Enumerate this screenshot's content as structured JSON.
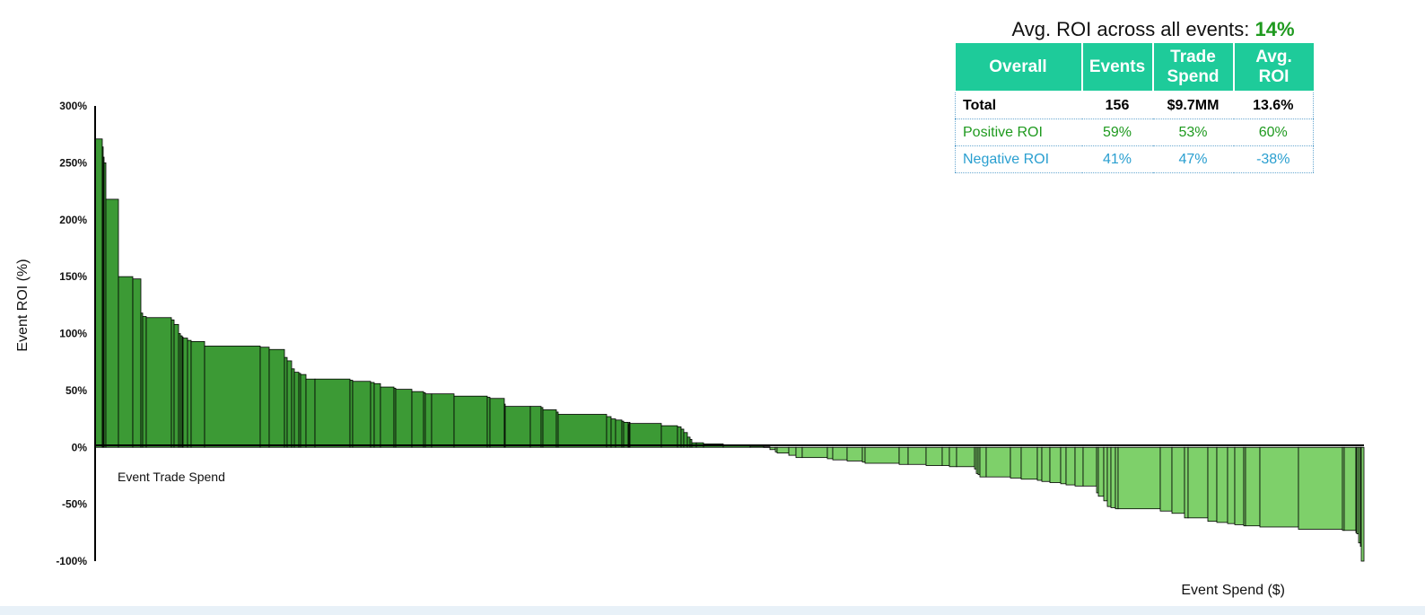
{
  "summary": {
    "label": "Avg. ROI across all events:",
    "value": "14%",
    "columns": [
      "Overall",
      "Events",
      "Trade Spend",
      "Avg. ROI"
    ],
    "rows": [
      {
        "label": "Total",
        "events": "156",
        "spend": "$9.7MM",
        "roi": "13.6%"
      },
      {
        "label": "Positive ROI",
        "events": "59%",
        "spend": "53%",
        "roi": "60%"
      },
      {
        "label": "Negative ROI",
        "events": "41%",
        "spend": "47%",
        "roi": "-38%"
      }
    ]
  },
  "colors": {
    "positive_bar": "#3c9a35",
    "negative_bar": "#7ed06a",
    "header_bg": "#1ecb9a"
  },
  "chart_data": {
    "type": "bar",
    "ylabel": "Event ROI (%)",
    "xlabel": "Event Spend ($)",
    "annotation": "Event Trade Spend",
    "yticks": [
      "300%",
      "250%",
      "200%",
      "150%",
      "100%",
      "50%",
      "0%",
      "-50%",
      "-100%"
    ],
    "ylim": [
      -100,
      300
    ],
    "xlim": [
      0,
      1414
    ],
    "bars": [
      [
        0,
        8,
        271
      ],
      [
        8,
        9,
        264
      ],
      [
        9,
        10,
        255
      ],
      [
        10,
        12,
        250
      ],
      [
        12,
        26,
        218
      ],
      [
        26,
        42,
        150
      ],
      [
        42,
        51,
        148
      ],
      [
        51,
        53,
        118
      ],
      [
        53,
        57,
        115
      ],
      [
        57,
        85,
        114
      ],
      [
        85,
        88,
        112
      ],
      [
        88,
        93,
        108
      ],
      [
        93,
        95,
        100
      ],
      [
        95,
        97,
        98
      ],
      [
        97,
        98,
        97
      ],
      [
        98,
        103,
        96
      ],
      [
        103,
        107,
        94
      ],
      [
        107,
        122,
        93
      ],
      [
        122,
        184,
        89
      ],
      [
        184,
        194,
        88
      ],
      [
        194,
        211,
        86
      ],
      [
        211,
        214,
        79
      ],
      [
        214,
        219,
        76
      ],
      [
        219,
        222,
        69
      ],
      [
        222,
        227,
        66
      ],
      [
        227,
        229,
        65
      ],
      [
        229,
        235,
        64
      ],
      [
        235,
        245,
        60
      ],
      [
        245,
        284,
        60
      ],
      [
        284,
        287,
        59
      ],
      [
        287,
        307,
        58
      ],
      [
        307,
        311,
        57
      ],
      [
        311,
        318,
        56
      ],
      [
        318,
        333,
        53
      ],
      [
        333,
        335,
        52
      ],
      [
        335,
        353,
        51
      ],
      [
        353,
        366,
        49
      ],
      [
        366,
        368,
        48
      ],
      [
        368,
        375,
        47
      ],
      [
        375,
        400,
        47
      ],
      [
        400,
        437,
        45
      ],
      [
        437,
        440,
        44
      ],
      [
        440,
        456,
        43
      ],
      [
        456,
        457,
        38
      ],
      [
        457,
        485,
        36
      ],
      [
        485,
        497,
        36
      ],
      [
        497,
        499,
        35
      ],
      [
        499,
        514,
        33
      ],
      [
        514,
        516,
        31
      ],
      [
        516,
        570,
        29
      ],
      [
        570,
        575,
        27
      ],
      [
        575,
        580,
        25
      ],
      [
        580,
        587,
        24
      ],
      [
        587,
        589,
        23
      ],
      [
        589,
        594,
        22
      ],
      [
        594,
        595,
        20
      ],
      [
        595,
        596,
        22
      ],
      [
        596,
        631,
        21
      ],
      [
        631,
        649,
        19
      ],
      [
        649,
        653,
        18
      ],
      [
        653,
        656,
        16
      ],
      [
        656,
        660,
        13
      ],
      [
        660,
        663,
        9
      ],
      [
        663,
        665,
        7
      ],
      [
        665,
        670,
        4
      ],
      [
        670,
        678,
        4
      ],
      [
        678,
        700,
        3
      ],
      [
        700,
        730,
        2
      ],
      [
        730,
        745,
        1
      ],
      [
        745,
        752,
        0.5
      ],
      [
        752,
        758,
        -2
      ],
      [
        758,
        760,
        -4
      ],
      [
        760,
        773,
        -5
      ],
      [
        773,
        781,
        -7
      ],
      [
        781,
        788,
        -9
      ],
      [
        788,
        816,
        -9
      ],
      [
        816,
        822,
        -10
      ],
      [
        822,
        838,
        -11
      ],
      [
        838,
        855,
        -12
      ],
      [
        855,
        858,
        -13
      ],
      [
        858,
        896,
        -14
      ],
      [
        896,
        906,
        -15
      ],
      [
        906,
        926,
        -15
      ],
      [
        926,
        944,
        -16
      ],
      [
        944,
        952,
        -16
      ],
      [
        952,
        960,
        -17
      ],
      [
        960,
        980,
        -17
      ],
      [
        980,
        982,
        -19
      ],
      [
        982,
        984,
        -23
      ],
      [
        984,
        986,
        -24
      ],
      [
        986,
        993,
        -26
      ],
      [
        993,
        1020,
        -26
      ],
      [
        1020,
        1032,
        -27
      ],
      [
        1032,
        1050,
        -28
      ],
      [
        1050,
        1055,
        -29
      ],
      [
        1055,
        1064,
        -30
      ],
      [
        1064,
        1076,
        -31
      ],
      [
        1076,
        1082,
        -32
      ],
      [
        1082,
        1092,
        -33
      ],
      [
        1092,
        1101,
        -34
      ],
      [
        1101,
        1116,
        -34
      ],
      [
        1116,
        1118,
        -40
      ],
      [
        1118,
        1124,
        -43
      ],
      [
        1124,
        1128,
        -47
      ],
      [
        1128,
        1132,
        -52
      ],
      [
        1132,
        1137,
        -53
      ],
      [
        1137,
        1140,
        -54
      ],
      [
        1140,
        1187,
        -54
      ],
      [
        1187,
        1200,
        -56
      ],
      [
        1200,
        1214,
        -58
      ],
      [
        1214,
        1218,
        -62
      ],
      [
        1218,
        1240,
        -62
      ],
      [
        1240,
        1250,
        -65
      ],
      [
        1250,
        1262,
        -66
      ],
      [
        1262,
        1270,
        -67
      ],
      [
        1270,
        1280,
        -68
      ],
      [
        1280,
        1282,
        -69
      ],
      [
        1282,
        1298,
        -69
      ],
      [
        1298,
        1341,
        -70
      ],
      [
        1341,
        1390,
        -72
      ],
      [
        1390,
        1392,
        -73
      ],
      [
        1392,
        1405,
        -73
      ],
      [
        1405,
        1406,
        -75
      ],
      [
        1406,
        1408,
        -76
      ],
      [
        1408,
        1410,
        -84
      ],
      [
        1410,
        1411,
        -87
      ],
      [
        1411,
        1414,
        -100
      ]
    ]
  }
}
